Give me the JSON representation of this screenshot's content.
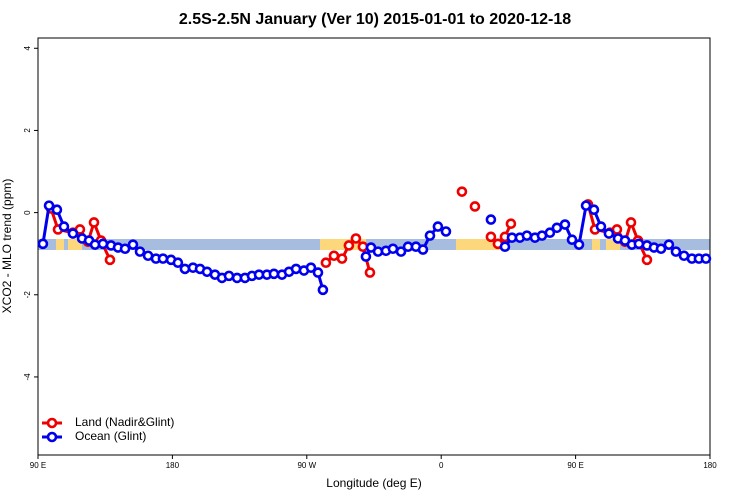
{
  "chart_data": {
    "type": "line",
    "title": "2.5S-2.5N January (Ver 10)   2015-01-01 to 2020-12-18",
    "xlabel": "Longitude (deg E)",
    "ylabel": "XCO2 - MLO trend (ppm)",
    "xlim": [
      90,
      540
    ],
    "ylim": [
      -5.9,
      4.25
    ],
    "xticks": [
      {
        "value": 90,
        "label": "90 E"
      },
      {
        "value": 180,
        "label": "180"
      },
      {
        "value": 270,
        "label": "90 W"
      },
      {
        "value": 360,
        "label": "0"
      },
      {
        "value": 450,
        "label": "90 E"
      },
      {
        "value": 540,
        "label": "180"
      }
    ],
    "yticks": [
      -4,
      -2,
      0,
      2,
      4
    ],
    "legend": "bottom-left",
    "series": [
      {
        "name": "Land (Nadir&Glint)",
        "color": "#ee0000",
        "x": [
          98.7,
          103.4,
          113.4,
          118.1,
          123.5,
          127.5,
          132.2,
          138.2,
          null,
          282.8,
          288.2,
          293.6,
          298.2,
          302.9,
          307.6,
          312.3,
          null,
          373.9,
          null,
          382.6,
          null,
          393.3,
          398.0,
          402.7,
          406.7,
          null,
          458.3,
          463.0,
          473.0,
          477.7,
          483.1,
          487.1,
          491.8,
          497.8
        ],
        "values": [
          0.1,
          -0.41,
          -0.49,
          -0.41,
          -0.71,
          -0.24,
          -0.68,
          -1.15,
          null,
          -1.22,
          -1.05,
          -1.12,
          -0.8,
          -0.63,
          -0.83,
          -1.46,
          null,
          0.51,
          null,
          0.15,
          null,
          -0.59,
          -0.76,
          -0.59,
          -0.27,
          null,
          0.2,
          -0.41,
          -0.49,
          -0.41,
          -0.71,
          -0.24,
          -0.68,
          -1.15
        ]
      },
      {
        "name": "Ocean (Glint)",
        "color": "#0000ee",
        "x": [
          93.3,
          97.4,
          102.7,
          107.4,
          113.4,
          119.5,
          124.2,
          128.2,
          133.5,
          138.9,
          143.6,
          148.3,
          153.6,
          158.3,
          163.7,
          169.0,
          173.7,
          179.1,
          183.7,
          188.4,
          193.8,
          198.5,
          203.2,
          208.5,
          213.2,
          217.9,
          223.3,
          228.6,
          233.3,
          238.0,
          243.3,
          248.0,
          253.4,
          258.1,
          262.8,
          268.1,
          272.8,
          277.5,
          280.8,
          null,
          309.6,
          313.0,
          317.7,
          323.0,
          327.7,
          333.1,
          337.8,
          343.1,
          347.8,
          352.5,
          357.8,
          363.2,
          null,
          393.3,
          null,
          402.7,
          407.4,
          412.7,
          417.4,
          422.8,
          427.5,
          432.8,
          437.5,
          442.9,
          447.6,
          452.3,
          457.0,
          462.3,
          467.0,
          472.3,
          478.4,
          483.1,
          487.7,
          492.4,
          497.8,
          502.5,
          507.2,
          512.5,
          517.2,
          522.6,
          527.9,
          532.6,
          537.3
        ],
        "values": [
          -0.76,
          0.17,
          0.07,
          -0.34,
          -0.51,
          -0.63,
          -0.68,
          -0.78,
          -0.76,
          -0.8,
          -0.85,
          -0.88,
          -0.78,
          -0.95,
          -1.05,
          -1.12,
          -1.12,
          -1.15,
          -1.22,
          -1.37,
          -1.34,
          -1.37,
          -1.44,
          -1.51,
          -1.59,
          -1.54,
          -1.59,
          -1.59,
          -1.54,
          -1.51,
          -1.51,
          -1.49,
          -1.51,
          -1.44,
          -1.37,
          -1.41,
          -1.34,
          -1.46,
          -1.88,
          null,
          -1.07,
          -0.85,
          -0.95,
          -0.93,
          -0.88,
          -0.95,
          -0.83,
          -0.83,
          -0.9,
          -0.56,
          -0.34,
          -0.46,
          null,
          -0.17,
          null,
          -0.83,
          -0.61,
          -0.61,
          -0.56,
          -0.61,
          -0.56,
          -0.49,
          -0.37,
          -0.29,
          -0.66,
          -0.78,
          0.17,
          0.07,
          -0.34,
          -0.51,
          -0.63,
          -0.68,
          -0.78,
          -0.76,
          -0.8,
          -0.85,
          -0.88,
          -0.78,
          -0.95,
          -1.05,
          -1.12,
          -1.12,
          -1.12
        ]
      }
    ]
  }
}
